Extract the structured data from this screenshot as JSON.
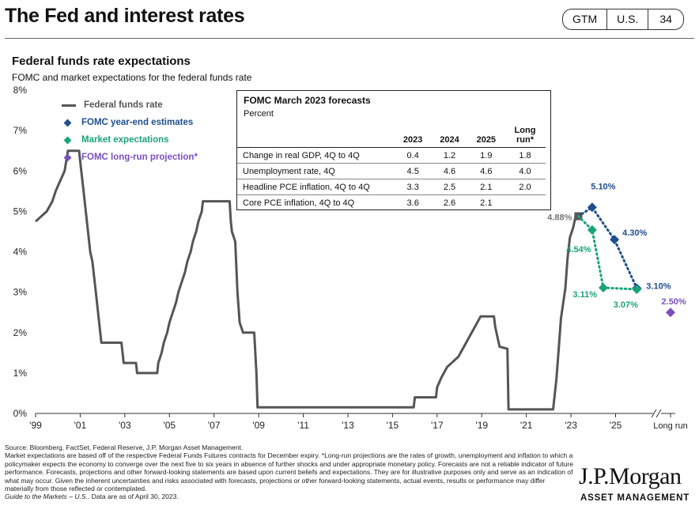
{
  "header": {
    "title": "The Fed and interest rates",
    "badges": [
      "GTM",
      "U.S.",
      "34"
    ]
  },
  "chart_title": "Federal funds rate expectations",
  "chart_subtitle": "FOMC and market expectations for the federal funds rate",
  "legend": [
    {
      "label": "Federal funds rate",
      "color": "#555555",
      "shape": "line"
    },
    {
      "label": "FOMC year-end estimates",
      "color": "#1f4e8c",
      "shape": "diamond"
    },
    {
      "label": "Market expectations",
      "color": "#1aa37a",
      "shape": "diamond"
    },
    {
      "label": "FOMC long-run projection*",
      "color": "#7b4fbd",
      "shape": "diamond"
    }
  ],
  "forecast_table": {
    "title": "FOMC March 2023 forecasts",
    "subtitle": "Percent",
    "headers": [
      "2023",
      "2024",
      "2025",
      "Long run*"
    ],
    "rows": [
      {
        "label": "Change in real GDP, 4Q to 4Q",
        "values": [
          "0.4",
          "1.2",
          "1.9",
          "1.8"
        ]
      },
      {
        "label": "Unemployment rate, 4Q",
        "values": [
          "4.5",
          "4.6",
          "4.6",
          "4.0"
        ]
      },
      {
        "label": "Headline PCE inflation, 4Q to 4Q",
        "values": [
          "3.3",
          "2.5",
          "2.1",
          "2.0"
        ]
      },
      {
        "label": "Core PCE inflation, 4Q to 4Q",
        "values": [
          "3.6",
          "2.6",
          "2.1",
          ""
        ]
      }
    ]
  },
  "chart_data": {
    "type": "line",
    "x_tick_labels": [
      "'99",
      "'01",
      "'03",
      "'05",
      "'07",
      "'09",
      "'11",
      "'13",
      "'15",
      "'17",
      "'19",
      "'21",
      "'23",
      "'25",
      "Long run"
    ],
    "y_tick_labels": [
      "0%",
      "1%",
      "2%",
      "3%",
      "4%",
      "5%",
      "6%",
      "7%",
      "8%"
    ],
    "ylim": [
      0,
      8
    ],
    "xlim": [
      1999,
      2026.4
    ],
    "grid": false,
    "legend_position": "top-left",
    "series": [
      {
        "name": "Federal funds rate",
        "color": "#555555",
        "points": [
          [
            1999.0,
            4.75
          ],
          [
            1999.5,
            5.0
          ],
          [
            1999.75,
            5.25
          ],
          [
            1999.9,
            5.5
          ],
          [
            2000.1,
            5.75
          ],
          [
            2000.3,
            6.0
          ],
          [
            2000.45,
            6.5
          ],
          [
            2000.95,
            6.5
          ],
          [
            2001.05,
            6.0
          ],
          [
            2001.15,
            5.5
          ],
          [
            2001.25,
            5.0
          ],
          [
            2001.35,
            4.5
          ],
          [
            2001.45,
            4.0
          ],
          [
            2001.55,
            3.75
          ],
          [
            2001.7,
            3.0
          ],
          [
            2001.8,
            2.5
          ],
          [
            2001.9,
            2.0
          ],
          [
            2001.95,
            1.75
          ],
          [
            2002.85,
            1.75
          ],
          [
            2002.95,
            1.25
          ],
          [
            2003.5,
            1.25
          ],
          [
            2003.55,
            1.0
          ],
          [
            2004.45,
            1.0
          ],
          [
            2004.5,
            1.25
          ],
          [
            2004.65,
            1.5
          ],
          [
            2004.75,
            1.75
          ],
          [
            2004.9,
            2.0
          ],
          [
            2005.0,
            2.25
          ],
          [
            2005.15,
            2.5
          ],
          [
            2005.3,
            2.75
          ],
          [
            2005.4,
            3.0
          ],
          [
            2005.55,
            3.25
          ],
          [
            2005.7,
            3.5
          ],
          [
            2005.8,
            3.75
          ],
          [
            2005.95,
            4.0
          ],
          [
            2006.05,
            4.25
          ],
          [
            2006.2,
            4.5
          ],
          [
            2006.3,
            4.75
          ],
          [
            2006.45,
            5.0
          ],
          [
            2006.5,
            5.25
          ],
          [
            2007.7,
            5.25
          ],
          [
            2007.75,
            4.75
          ],
          [
            2007.8,
            4.5
          ],
          [
            2007.95,
            4.25
          ],
          [
            2008.05,
            3.0
          ],
          [
            2008.15,
            2.25
          ],
          [
            2008.3,
            2.0
          ],
          [
            2008.8,
            2.0
          ],
          [
            2008.85,
            1.5
          ],
          [
            2008.9,
            1.0
          ],
          [
            2008.95,
            0.15
          ],
          [
            2015.95,
            0.15
          ],
          [
            2016.0,
            0.4
          ],
          [
            2016.95,
            0.4
          ],
          [
            2017.0,
            0.65
          ],
          [
            2017.2,
            0.9
          ],
          [
            2017.45,
            1.15
          ],
          [
            2017.95,
            1.4
          ],
          [
            2018.2,
            1.65
          ],
          [
            2018.45,
            1.9
          ],
          [
            2018.7,
            2.15
          ],
          [
            2018.95,
            2.4
          ],
          [
            2019.55,
            2.4
          ],
          [
            2019.6,
            2.15
          ],
          [
            2019.7,
            1.9
          ],
          [
            2019.8,
            1.65
          ],
          [
            2020.15,
            1.6
          ],
          [
            2020.2,
            0.1
          ],
          [
            2022.2,
            0.1
          ],
          [
            2022.25,
            0.35
          ],
          [
            2022.35,
            0.85
          ],
          [
            2022.45,
            1.6
          ],
          [
            2022.55,
            2.35
          ],
          [
            2022.75,
            3.1
          ],
          [
            2022.85,
            3.85
          ],
          [
            2022.95,
            4.35
          ],
          [
            2023.1,
            4.6
          ],
          [
            2023.2,
            4.85
          ],
          [
            2023.33,
            4.88
          ]
        ]
      },
      {
        "name": "FOMC year-end estimates",
        "color": "#1f4e8c",
        "points": [
          [
            2023.33,
            4.88
          ],
          [
            2023.95,
            5.1
          ],
          [
            2024.95,
            4.3
          ],
          [
            2025.95,
            3.1
          ]
        ],
        "labels": [
          "4.88%",
          "5.10%",
          "4.30%",
          "3.10%"
        ]
      },
      {
        "name": "Market expectations",
        "color": "#1aa37a",
        "points": [
          [
            2023.33,
            4.88
          ],
          [
            2023.95,
            4.54
          ],
          [
            2024.45,
            3.11
          ],
          [
            2025.95,
            3.07
          ]
        ],
        "labels": [
          "",
          "4.54%",
          "3.11%",
          "3.07%"
        ]
      },
      {
        "name": "FOMC long-run projection*",
        "color": "#7b4fbd",
        "points": [
          [
            "Long run",
            2.5
          ]
        ],
        "labels": [
          "2.50%"
        ]
      }
    ]
  },
  "footnote": {
    "source": "Source: Bloomberg, FactSet, Federal Reserve, J.P. Morgan Asset Management.",
    "body": "Market expectations are based off of the respective Federal Funds Futures contracts for December expiry. *Long-run projections are the rates of growth, unemployment and inflation to which a policymaker expects the economy to converge over the next five to six years in absence of further shocks and under appropriate monetary policy. Forecasts are not a reliable indicator of future performance. Forecasts, projections and other forward-looking statements are based upon current beliefs and expectations. They are for illustrative purposes only and serve as an indication of what may occur. Given the inherent uncertainties and risks associated with forecasts, projections or other forward-looking statements, actual events, results or performance may differ materially from those reflected or contemplated.",
    "guide_title": "Guide to the Markets – U.S.",
    "guide_date": "Data are as of April 30, 2023."
  },
  "branding": {
    "logo": "J.P.Morgan",
    "subtitle": "ASSET MANAGEMENT"
  }
}
